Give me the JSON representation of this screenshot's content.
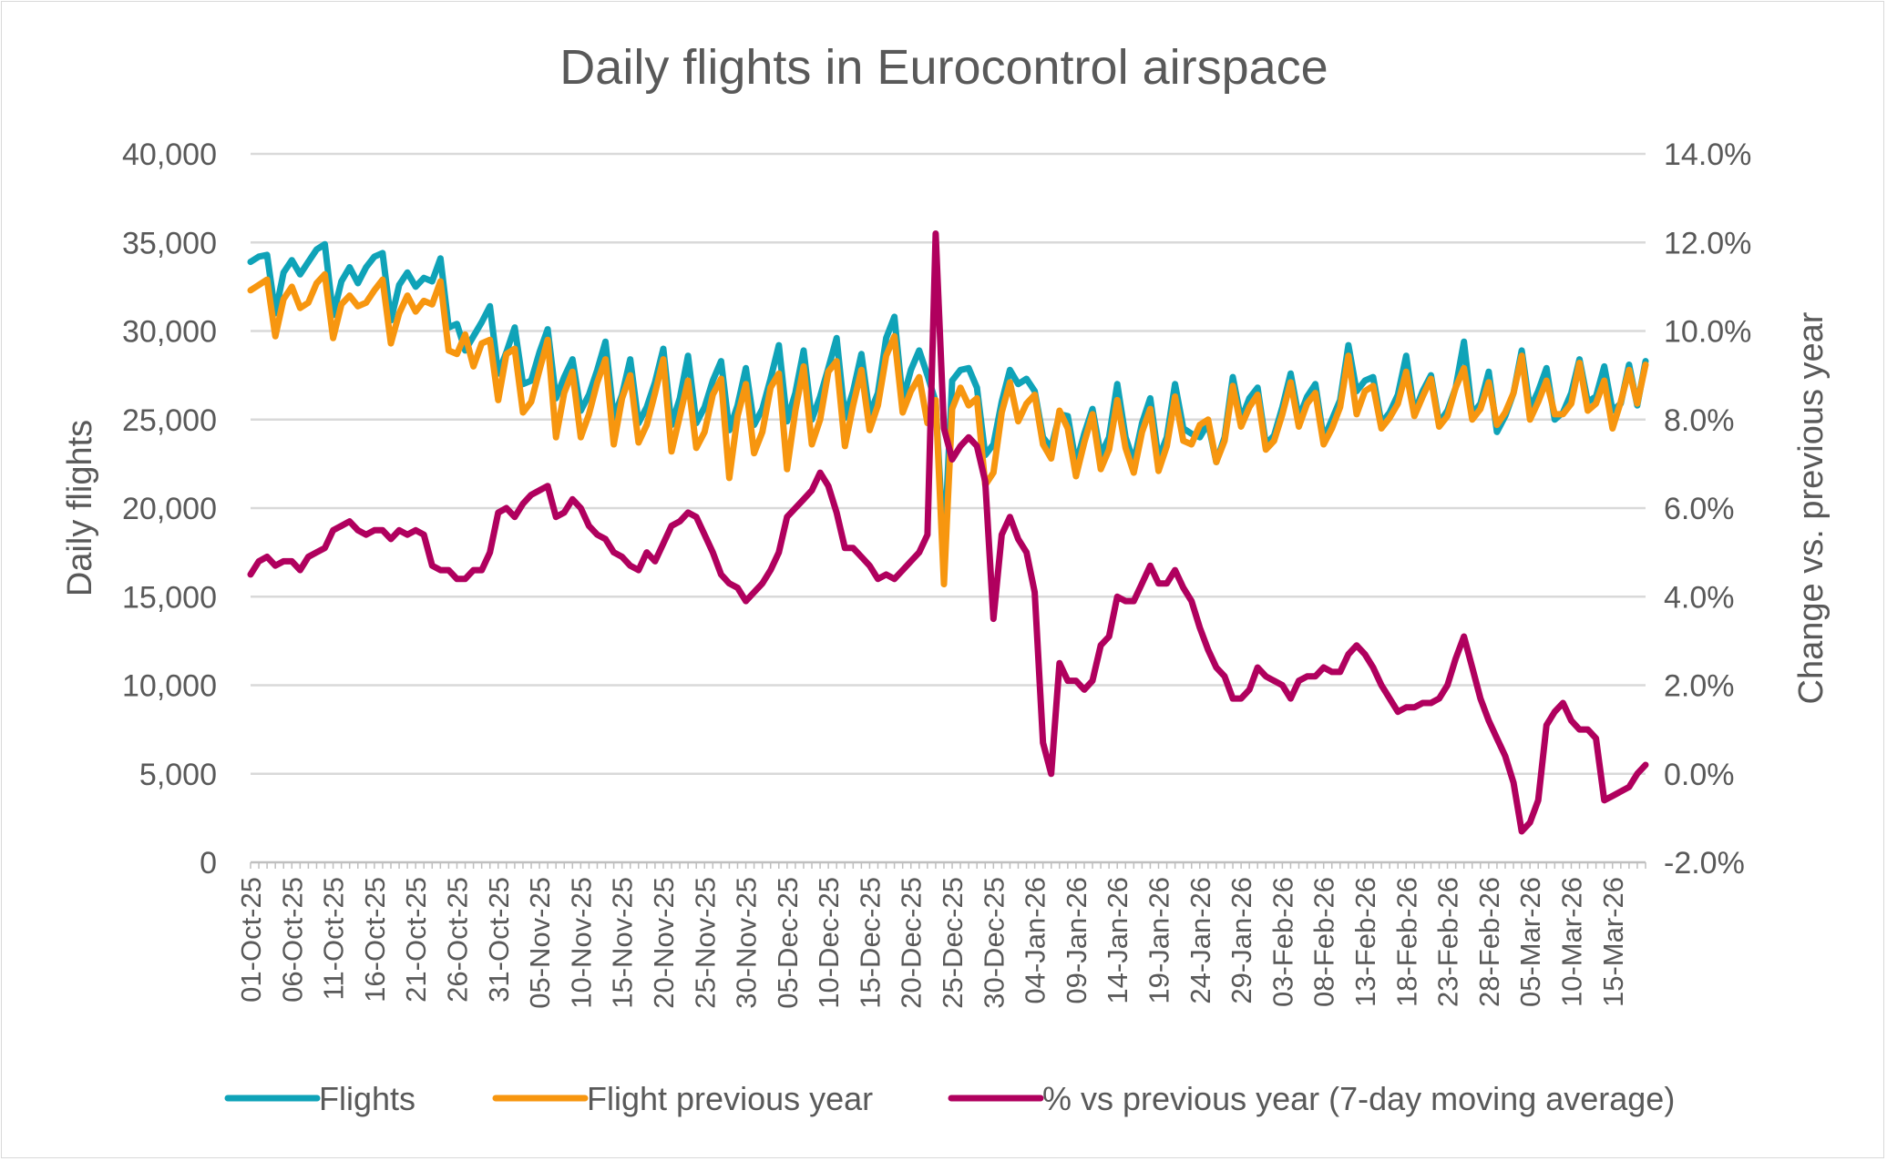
{
  "chart_data": {
    "type": "line",
    "title": "Daily flights in Eurocontrol airspace",
    "ylabel": "Daily flights",
    "y2label": "Change vs. previous year",
    "ylim": [
      0,
      40000
    ],
    "y2lim": [
      -2.0,
      14.0
    ],
    "yticks": [
      "0",
      "5,000",
      "10,000",
      "15,000",
      "20,000",
      "25,000",
      "30,000",
      "35,000",
      "40,000"
    ],
    "y2ticks": [
      "-2.0%",
      "0.0%",
      "2.0%",
      "4.0%",
      "6.0%",
      "8.0%",
      "10.0%",
      "12.0%",
      "14.0%"
    ],
    "grid": true,
    "legend": "bottom",
    "x_start": "01-Oct-25",
    "x_end": "19-Mar-26",
    "xtick_every_days": 5,
    "xticks": [
      "01-Oct-25",
      "06-Oct-25",
      "11-Oct-25",
      "16-Oct-25",
      "21-Oct-25",
      "26-Oct-25",
      "31-Oct-25",
      "05-Nov-25",
      "10-Nov-25",
      "15-Nov-25",
      "20-Nov-25",
      "25-Nov-25",
      "30-Nov-25",
      "05-Dec-25",
      "10-Dec-25",
      "15-Dec-25",
      "20-Dec-25",
      "25-Dec-25",
      "30-Dec-25",
      "04-Jan-26",
      "09-Jan-26",
      "14-Jan-26",
      "19-Jan-26",
      "24-Jan-26",
      "29-Jan-26",
      "03-Feb-26",
      "08-Feb-26",
      "13-Feb-26",
      "18-Feb-26",
      "23-Feb-26",
      "28-Feb-26",
      "05-Mar-26",
      "10-Mar-26",
      "15-Mar-26"
    ],
    "series": [
      {
        "name": "Flights",
        "axis": "left",
        "color": "#0fa3b8",
        "values": [
          33900,
          34200,
          34300,
          31000,
          33300,
          34000,
          33200,
          33900,
          34600,
          34900,
          30900,
          32800,
          33600,
          32700,
          33600,
          34200,
          34400,
          30600,
          32600,
          33300,
          32500,
          33000,
          32800,
          34100,
          30200,
          30400,
          28900,
          29700,
          30500,
          31400,
          27600,
          28800,
          30200,
          27000,
          27200,
          28800,
          30100,
          26200,
          27400,
          28400,
          25500,
          26400,
          27800,
          29400,
          25100,
          26400,
          28400,
          24800,
          25700,
          27100,
          29000,
          24700,
          26200,
          28600,
          24800,
          25700,
          27200,
          28300,
          24400,
          25800,
          27900,
          24700,
          25600,
          27300,
          29200,
          24900,
          26500,
          28900,
          25000,
          26300,
          27900,
          29600,
          25100,
          26600,
          28700,
          25300,
          26500,
          29600,
          30800,
          26100,
          27800,
          28900,
          27500,
          26000,
          17400,
          27200,
          27800,
          27900,
          26800,
          23000,
          23600,
          26000,
          27800,
          27000,
          27300,
          26600,
          24000,
          23400,
          25300,
          25200,
          22500,
          24200,
          25600,
          23000,
          24000,
          27000,
          24000,
          22600,
          24800,
          26200,
          22800,
          24000,
          27000,
          24500,
          24200,
          24000,
          24800,
          22600,
          24000,
          27400,
          25000,
          26200,
          26800,
          23600,
          24100,
          25700,
          27600,
          25100,
          26300,
          27000,
          23900,
          25000,
          26100,
          29200,
          26600,
          27200,
          27400,
          24800,
          25400,
          26400,
          28600,
          25400,
          26600,
          27500,
          24800,
          25500,
          26800,
          29400,
          25300,
          25900,
          27700,
          24300,
          25200,
          26500,
          28900,
          25600,
          26600,
          27900,
          25000,
          25400,
          26500,
          28400,
          26000,
          26300,
          28000,
          25500,
          25900,
          28100,
          25800,
          28300
        ]
      },
      {
        "name": "Flight previous year",
        "axis": "left",
        "color": "#f7960f",
        "values": [
          32300,
          32600,
          32900,
          29700,
          31800,
          32500,
          31300,
          31600,
          32700,
          33200,
          29600,
          31500,
          32000,
          31400,
          31600,
          32300,
          32900,
          29300,
          31000,
          32000,
          31100,
          31700,
          31500,
          32800,
          28900,
          28700,
          29800,
          28000,
          29300,
          29500,
          26100,
          28700,
          29000,
          25400,
          26000,
          27800,
          29500,
          24000,
          26500,
          27700,
          24000,
          25300,
          27100,
          28400,
          23600,
          26200,
          27500,
          23700,
          24700,
          26500,
          28400,
          23200,
          25200,
          27200,
          23400,
          24300,
          26400,
          27300,
          21700,
          25200,
          27000,
          23100,
          24300,
          26800,
          27600,
          22200,
          25500,
          28000,
          23600,
          25000,
          27700,
          28300,
          23500,
          25800,
          27800,
          24400,
          25800,
          28600,
          29700,
          25400,
          26600,
          27400,
          24800,
          26100,
          15700,
          25600,
          26800,
          25800,
          26200,
          21300,
          22000,
          25400,
          27100,
          24900,
          25900,
          26400,
          23600,
          22800,
          25500,
          24500,
          21800,
          23700,
          25300,
          22200,
          23300,
          26100,
          23400,
          22000,
          24300,
          25600,
          22100,
          23500,
          26300,
          23800,
          23600,
          24700,
          25000,
          22600,
          23800,
          26900,
          24600,
          25700,
          26400,
          23300,
          23800,
          25300,
          27100,
          24600,
          25900,
          26500,
          23600,
          24500,
          25700,
          28600,
          25300,
          26600,
          26900,
          24500,
          25100,
          25900,
          27700,
          25200,
          26300,
          27300,
          24600,
          25200,
          26800,
          27900,
          25000,
          25600,
          27100,
          24700,
          25400,
          26500,
          28600,
          25000,
          26000,
          27200,
          25300,
          25300,
          25900,
          28200,
          25500,
          25900,
          27200,
          24500,
          26000,
          27800,
          25900,
          28100
        ]
      },
      {
        "name": "% vs previous year (7-day moving average)",
        "axis": "right",
        "color": "#b0005e",
        "values": [
          4.5,
          4.8,
          4.9,
          4.7,
          4.8,
          4.8,
          4.6,
          4.9,
          5.0,
          5.1,
          5.5,
          5.6,
          5.7,
          5.5,
          5.4,
          5.5,
          5.5,
          5.3,
          5.5,
          5.4,
          5.5,
          5.4,
          4.7,
          4.6,
          4.6,
          4.4,
          4.4,
          4.6,
          4.6,
          5.0,
          5.9,
          6.0,
          5.8,
          6.1,
          6.3,
          6.4,
          6.5,
          5.8,
          5.9,
          6.2,
          6.0,
          5.6,
          5.4,
          5.3,
          5.0,
          4.9,
          4.7,
          4.6,
          5.0,
          4.8,
          5.2,
          5.6,
          5.7,
          5.9,
          5.8,
          5.4,
          5.0,
          4.5,
          4.3,
          4.2,
          3.9,
          4.1,
          4.3,
          4.6,
          5.0,
          5.8,
          6.0,
          6.2,
          6.4,
          6.8,
          6.5,
          5.9,
          5.1,
          5.1,
          4.9,
          4.7,
          4.4,
          4.5,
          4.4,
          4.6,
          4.8,
          5.0,
          5.4,
          12.2,
          7.8,
          7.1,
          7.4,
          7.6,
          7.4,
          6.6,
          3.5,
          5.4,
          5.8,
          5.3,
          5.0,
          4.1,
          0.7,
          0.0,
          2.5,
          2.1,
          2.1,
          1.9,
          2.1,
          2.9,
          3.1,
          4.0,
          3.9,
          3.9,
          4.3,
          4.7,
          4.3,
          4.3,
          4.6,
          4.2,
          3.9,
          3.3,
          2.8,
          2.4,
          2.2,
          1.7,
          1.7,
          1.9,
          2.4,
          2.2,
          2.1,
          2.0,
          1.7,
          2.1,
          2.2,
          2.2,
          2.4,
          2.3,
          2.3,
          2.7,
          2.9,
          2.7,
          2.4,
          2.0,
          1.7,
          1.4,
          1.5,
          1.5,
          1.6,
          1.6,
          1.7,
          2.0,
          2.6,
          3.1,
          2.4,
          1.7,
          1.2,
          0.8,
          0.4,
          -0.2,
          -1.3,
          -1.1,
          -0.6,
          1.1,
          1.4,
          1.6,
          1.2,
          1.0,
          1.0,
          0.8,
          -0.6,
          -0.5,
          -0.4,
          -0.3,
          0.0,
          0.2
        ]
      }
    ]
  }
}
